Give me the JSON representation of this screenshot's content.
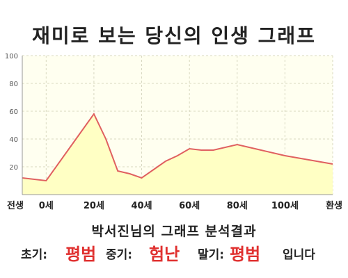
{
  "title": "재미로 보는 당신의 인생 그래프",
  "colors": {
    "line": "#e06060",
    "fill": "#ffffc4",
    "plot_bg": "#fffff0",
    "grid": "#d8d8c0",
    "highlight": "#e0302f"
  },
  "chart_data": {
    "type": "area",
    "x": [
      -10,
      0,
      10,
      20,
      25,
      30,
      35,
      40,
      45,
      50,
      55,
      60,
      65,
      70,
      80,
      90,
      100,
      110,
      120
    ],
    "x_tick_values": [
      -10,
      0,
      20,
      40,
      60,
      80,
      100,
      120
    ],
    "x_tick_labels": [
      "전생",
      "0세",
      "20세",
      "40세",
      "60세",
      "80세",
      "100세",
      "환생"
    ],
    "values": [
      12,
      10,
      34,
      58,
      40,
      17,
      15,
      12,
      18,
      24,
      28,
      33,
      32,
      32,
      36,
      32,
      28,
      25,
      22
    ],
    "ylim": [
      0,
      100
    ],
    "y_ticks": [
      20,
      40,
      60,
      80,
      100
    ],
    "xlim": [
      -10,
      120
    ],
    "grid": true,
    "title": "재미로 보는 당신의 인생 그래프"
  },
  "summary": {
    "title": "박서진님의 그래프 분석결과",
    "early_label": "초기:",
    "early_value": "평범",
    "middle_label": "중기:",
    "middle_value": "험난",
    "late_label": "말기:",
    "late_value": "평범",
    "ending": "입니다"
  }
}
